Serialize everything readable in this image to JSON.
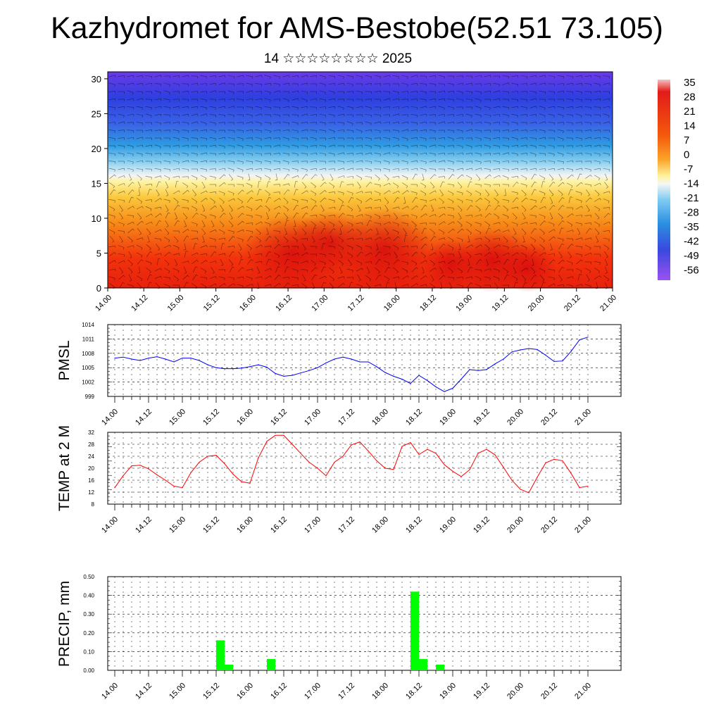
{
  "title": "Kazhydromet for AMS-Bestobe(52.51 73.105)",
  "subtitle": "14 ☆☆☆☆☆☆☆☆ 2025",
  "time_ticks": [
    "14.00",
    "14.12",
    "15.00",
    "15.12",
    "16.00",
    "16.12",
    "17.00",
    "17.12",
    "18.00",
    "18.12",
    "19.00",
    "19.12",
    "20.00",
    "20.12",
    "21.00"
  ],
  "chart_data": [
    {
      "type": "heatmap",
      "name": "cross-section",
      "x_categories": [
        "14.00",
        "14.12",
        "15.00",
        "15.12",
        "16.00",
        "16.12",
        "17.00",
        "17.12",
        "18.00",
        "18.12",
        "19.00",
        "19.12",
        "20.00",
        "20.12",
        "21.00"
      ],
      "y_ticks": [
        0,
        5,
        10,
        15,
        20,
        25,
        30
      ],
      "ylim": [
        0,
        31
      ],
      "colorbar": {
        "labels": [
          "35",
          "28",
          "21",
          "14",
          "7",
          "0",
          "-7",
          "-14",
          "-21",
          "-28",
          "-35",
          "-42",
          "-49",
          "-56"
        ],
        "colors": [
          "#f5b5b5",
          "#e31a1a",
          "#f02a10",
          "#f44a0c",
          "#f97a10",
          "#fba52a",
          "#fdd45c",
          "#fff7a8",
          "#b8e2f5",
          "#5ac0ec",
          "#2a8ee0",
          "#3a5ee0",
          "#3a3ad8",
          "#6a3ae0",
          "#9b52f2"
        ]
      }
    },
    {
      "type": "line",
      "name": "pmsl",
      "ylabel": "PMSL",
      "color": "#0000ff",
      "ylim": [
        999,
        1014
      ],
      "y_ticks": [
        999,
        1002,
        1005,
        1008,
        1011,
        1014
      ],
      "x": [
        0,
        1,
        2,
        3,
        4,
        5,
        6,
        7,
        8,
        9,
        10,
        11,
        12,
        13,
        14,
        15,
        16,
        17,
        18,
        19,
        20,
        21,
        22,
        23,
        24,
        25,
        26,
        27,
        28,
        29,
        30,
        31,
        32,
        33,
        34,
        35,
        36,
        37,
        38,
        39,
        40,
        41,
        42,
        43,
        44,
        45,
        46,
        47,
        48,
        49,
        50,
        51,
        52,
        53,
        54,
        55,
        56
      ],
      "values": [
        1007,
        1007.2,
        1006.8,
        1006.5,
        1007,
        1007.3,
        1006.8,
        1006.2,
        1007,
        1007,
        1006.5,
        1005.6,
        1005,
        1004.8,
        1004.8,
        1004.9,
        1005.2,
        1005.6,
        1005.1,
        1003.8,
        1003.2,
        1003.4,
        1003.9,
        1004.4,
        1005,
        1006,
        1006.8,
        1007.2,
        1006.8,
        1006.2,
        1006.2,
        1005.2,
        1004,
        1003.2,
        1002.6,
        1001.7,
        1003.4,
        1002.3,
        1001,
        1000,
        1000.7,
        1002.6,
        1004.6,
        1004.4,
        1004.6,
        1005.8,
        1006.8,
        1008.3,
        1008.7,
        1009,
        1008.8,
        1007.6,
        1006.3,
        1006.4,
        1008.4,
        1010.8,
        1011.4
      ]
    },
    {
      "type": "line",
      "name": "temp",
      "ylabel": "TEMP at 2 M",
      "color": "#ff0000",
      "ylim": [
        8,
        32
      ],
      "y_ticks": [
        8,
        12,
        16,
        20,
        24,
        28,
        32
      ],
      "x": [
        0,
        1,
        2,
        3,
        4,
        5,
        6,
        7,
        8,
        9,
        10,
        11,
        12,
        13,
        14,
        15,
        16,
        17,
        18,
        19,
        20,
        21,
        22,
        23,
        24,
        25,
        26,
        27,
        28,
        29,
        30,
        31,
        32,
        33,
        34,
        35,
        36,
        37,
        38,
        39,
        40,
        41,
        42,
        43,
        44,
        45,
        46,
        47,
        48,
        49,
        50,
        51,
        52,
        53,
        54,
        55,
        56
      ],
      "values": [
        13.5,
        17.5,
        20.8,
        21,
        19.8,
        17.8,
        16,
        14,
        13.5,
        18.5,
        22,
        24,
        24.3,
        21.5,
        18,
        15.5,
        15,
        23.5,
        29,
        31,
        31,
        28,
        25,
        22,
        20,
        17.5,
        22,
        24,
        27.8,
        28.8,
        25.8,
        22.5,
        20,
        19.6,
        27.3,
        28.6,
        24.6,
        26.3,
        25,
        21.2,
        19,
        17.2,
        19.5,
        25,
        26.3,
        24.5,
        20.3,
        16,
        13,
        11.8,
        17,
        21.8,
        23,
        22.5,
        18.3,
        13.5,
        14
      ]
    },
    {
      "type": "bar",
      "name": "precip",
      "ylabel": "PRECIP, mm",
      "color": "#00ff00",
      "ylim": [
        0,
        0.5
      ],
      "y_ticks": [
        "0.00",
        "0.10",
        "0.20",
        "0.30",
        "0.40",
        "0.50"
      ],
      "x": [
        12.5,
        13.5,
        18.5,
        35.5,
        36.5,
        38.5
      ],
      "values": [
        0.16,
        0.03,
        0.06,
        0.42,
        0.06,
        0.03
      ]
    }
  ]
}
